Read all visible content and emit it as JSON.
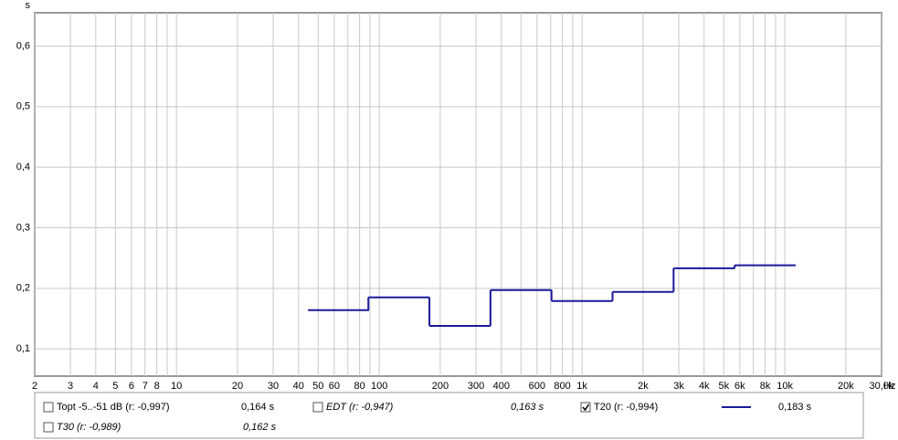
{
  "chart_data": {
    "type": "step",
    "y_unit": "s",
    "x_unit": "Hz",
    "log_x": true,
    "grid": true,
    "xlim": [
      2,
      30000
    ],
    "ylim": [
      0.055,
      0.655
    ],
    "xticks": [
      2,
      3,
      4,
      5,
      6,
      7,
      8,
      10,
      20,
      30,
      40,
      50,
      60,
      80,
      100,
      200,
      300,
      400,
      600,
      800,
      {
        "value": 1000,
        "label": "1k"
      },
      {
        "value": 2000,
        "label": "2k"
      },
      {
        "value": 3000,
        "label": "3k"
      },
      {
        "value": 4000,
        "label": "4k"
      },
      {
        "value": 5000,
        "label": "5k"
      },
      {
        "value": 6000,
        "label": "6k"
      },
      {
        "value": 8000,
        "label": "8k"
      },
      {
        "value": 10000,
        "label": "10k"
      },
      {
        "value": 20000,
        "label": "20k"
      },
      {
        "value": 30000,
        "label": "30,0k"
      }
    ],
    "xminor": [
      9,
      70,
      90,
      500,
      700,
      900,
      7000,
      9000
    ],
    "yticks": [
      {
        "value": 0.1,
        "label": "0,1"
      },
      {
        "value": 0.2,
        "label": "0,2"
      },
      {
        "value": 0.3,
        "label": "0,3"
      },
      {
        "value": 0.4,
        "label": "0,4"
      },
      {
        "value": 0.5,
        "label": "0,5"
      },
      {
        "value": 0.6,
        "label": "0,6"
      }
    ],
    "series": [
      {
        "name": "T20 (r: -0,994)",
        "color": "#1a1a9c",
        "x": [
          63,
          125,
          250,
          500,
          1000,
          2000,
          4000,
          8000
        ],
        "values": [
          0.164,
          0.185,
          0.138,
          0.197,
          0.179,
          0.194,
          0.233,
          0.238
        ]
      }
    ],
    "legend": [
      {
        "name": "Topt -5..-51 dB (r: -0,997)",
        "value": "0,164 s",
        "color": "#1a7a1a",
        "italic": false,
        "checked": false
      },
      {
        "name": "EDT (r: -0,947)",
        "value": "0,163 s",
        "color": "#2a9a9a",
        "italic": true,
        "checked": false
      },
      {
        "name": "T20 (r: -0,994)",
        "value": "0,183 s",
        "color": "#000000",
        "italic": false,
        "checked": true
      },
      {
        "name": "T30 (r: -0,989)",
        "value": "0,162 s",
        "color": "#8a1a8a",
        "italic": true,
        "checked": false
      }
    ]
  }
}
